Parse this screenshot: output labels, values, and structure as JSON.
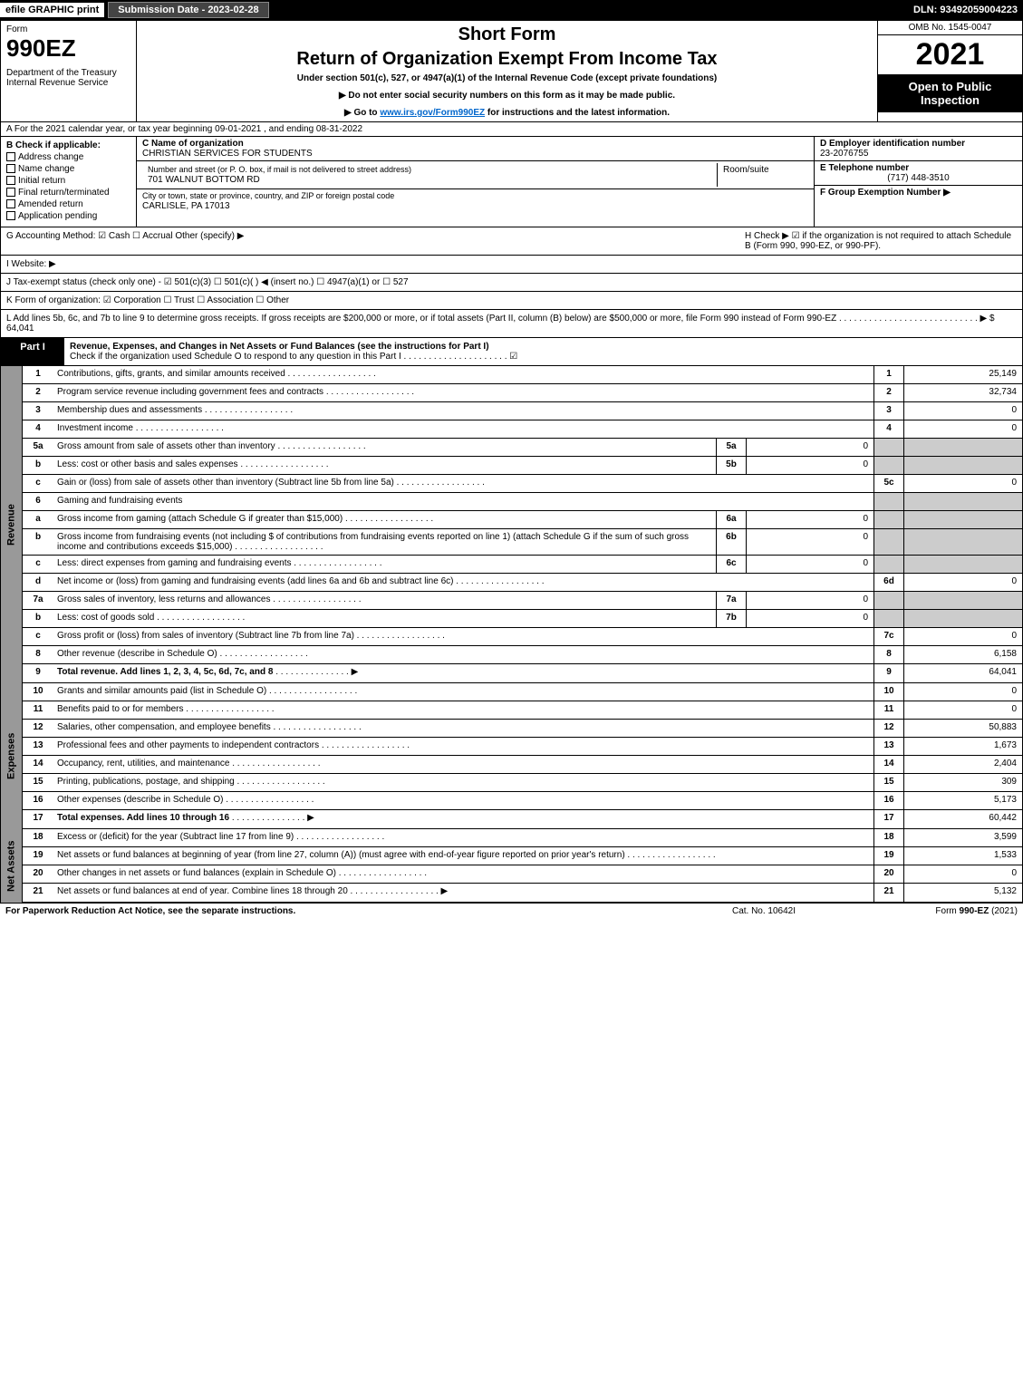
{
  "topbar": {
    "efile": "efile GRAPHIC print",
    "subdate": "Submission Date - 2023-02-28",
    "dln": "DLN: 93492059004223"
  },
  "header": {
    "form": "Form",
    "formnum": "990EZ",
    "dept": "Department of the Treasury",
    "irs": "Internal Revenue Service",
    "sf": "Short Form",
    "title": "Return of Organization Exempt From Income Tax",
    "sub": "Under section 501(c), 527, or 4947(a)(1) of the Internal Revenue Code (except private foundations)",
    "note1": "▶ Do not enter social security numbers on this form as it may be made public.",
    "note2_pre": "▶ Go to ",
    "note2_link": "www.irs.gov/Form990EZ",
    "note2_post": " for instructions and the latest information.",
    "omb": "OMB No. 1545-0047",
    "year": "2021",
    "open": "Open to Public Inspection"
  },
  "rowA": "A  For the 2021 calendar year, or tax year beginning 09-01-2021 , and ending 08-31-2022",
  "colB": {
    "title": "B  Check if applicable:",
    "opts": [
      "Address change",
      "Name change",
      "Initial return",
      "Final return/terminated",
      "Amended return",
      "Application pending"
    ]
  },
  "colC": {
    "name_lbl": "C Name of organization",
    "name": "CHRISTIAN SERVICES FOR STUDENTS",
    "street_lbl": "Number and street (or P. O. box, if mail is not delivered to street address)",
    "room_lbl": "Room/suite",
    "street": "701 WALNUT BOTTOM RD",
    "city_lbl": "City or town, state or province, country, and ZIP or foreign postal code",
    "city": "CARLISLE, PA  17013"
  },
  "colD": {
    "ein_lbl": "D Employer identification number",
    "ein": "23-2076755",
    "phone_lbl": "E Telephone number",
    "phone": "(717) 448-3510",
    "group_lbl": "F Group Exemption Number   ▶"
  },
  "rowG": {
    "g": "G Accounting Method:   ☑ Cash   ☐ Accrual   Other (specify) ▶",
    "h": "H  Check ▶  ☑  if the organization is not required to attach Schedule B (Form 990, 990-EZ, or 990-PF)."
  },
  "rowI": "I Website: ▶",
  "rowJ": "J Tax-exempt status (check only one) - ☑ 501(c)(3)  ☐ 501(c)(  ) ◀ (insert no.)  ☐ 4947(a)(1) or  ☐ 527",
  "rowK": "K Form of organization:  ☑ Corporation   ☐ Trust   ☐ Association   ☐ Other",
  "rowL": "L Add lines 5b, 6c, and 7b to line 9 to determine gross receipts. If gross receipts are $200,000 or more, or if total assets (Part II, column (B) below) are $500,000 or more, file Form 990 instead of Form 990-EZ  . . . . . . . . . . . . . . . . . . . . . . . . . . . .  ▶ $ 64,041",
  "part1": {
    "tag": "Part I",
    "title": "Revenue, Expenses, and Changes in Net Assets or Fund Balances (see the instructions for Part I)",
    "sub": "Check if the organization used Schedule O to respond to any question in this Part I . . . . . . . . . . . . . . . . . . . . .  ☑"
  },
  "sections": [
    {
      "label": "Revenue",
      "rows": [
        {
          "n": "1",
          "d": "Contributions, gifts, grants, and similar amounts received",
          "rn": "1",
          "rv": "25,149"
        },
        {
          "n": "2",
          "d": "Program service revenue including government fees and contracts",
          "rn": "2",
          "rv": "32,734"
        },
        {
          "n": "3",
          "d": "Membership dues and assessments",
          "rn": "3",
          "rv": "0"
        },
        {
          "n": "4",
          "d": "Investment income",
          "rn": "4",
          "rv": "0"
        },
        {
          "n": "5a",
          "d": "Gross amount from sale of assets other than inventory",
          "sn": "5a",
          "sv": "0",
          "grey": true
        },
        {
          "n": "b",
          "d": "Less: cost or other basis and sales expenses",
          "sn": "5b",
          "sv": "0",
          "grey": true
        },
        {
          "n": "c",
          "d": "Gain or (loss) from sale of assets other than inventory (Subtract line 5b from line 5a)",
          "rn": "5c",
          "rv": "0"
        },
        {
          "n": "6",
          "d": "Gaming and fundraising events",
          "grey": true,
          "noval": true
        },
        {
          "n": "a",
          "d": "Gross income from gaming (attach Schedule G if greater than $15,000)",
          "sn": "6a",
          "sv": "0",
          "grey": true
        },
        {
          "n": "b",
          "d": "Gross income from fundraising events (not including $                      of contributions from fundraising events reported on line 1) (attach Schedule G if the sum of such gross income and contributions exceeds $15,000)",
          "sn": "6b",
          "sv": "0",
          "grey": true
        },
        {
          "n": "c",
          "d": "Less: direct expenses from gaming and fundraising events",
          "sn": "6c",
          "sv": "0",
          "grey": true
        },
        {
          "n": "d",
          "d": "Net income or (loss) from gaming and fundraising events (add lines 6a and 6b and subtract line 6c)",
          "rn": "6d",
          "rv": "0"
        },
        {
          "n": "7a",
          "d": "Gross sales of inventory, less returns and allowances",
          "sn": "7a",
          "sv": "0",
          "grey": true
        },
        {
          "n": "b",
          "d": "Less: cost of goods sold",
          "sn": "7b",
          "sv": "0",
          "grey": true
        },
        {
          "n": "c",
          "d": "Gross profit or (loss) from sales of inventory (Subtract line 7b from line 7a)",
          "rn": "7c",
          "rv": "0"
        },
        {
          "n": "8",
          "d": "Other revenue (describe in Schedule O)",
          "rn": "8",
          "rv": "6,158"
        },
        {
          "n": "9",
          "d": "Total revenue. Add lines 1, 2, 3, 4, 5c, 6d, 7c, and 8",
          "rn": "9",
          "rv": "64,041",
          "bold": true,
          "arrow": true
        }
      ]
    },
    {
      "label": "Expenses",
      "rows": [
        {
          "n": "10",
          "d": "Grants and similar amounts paid (list in Schedule O)",
          "rn": "10",
          "rv": "0"
        },
        {
          "n": "11",
          "d": "Benefits paid to or for members",
          "rn": "11",
          "rv": "0"
        },
        {
          "n": "12",
          "d": "Salaries, other compensation, and employee benefits",
          "rn": "12",
          "rv": "50,883"
        },
        {
          "n": "13",
          "d": "Professional fees and other payments to independent contractors",
          "rn": "13",
          "rv": "1,673"
        },
        {
          "n": "14",
          "d": "Occupancy, rent, utilities, and maintenance",
          "rn": "14",
          "rv": "2,404"
        },
        {
          "n": "15",
          "d": "Printing, publications, postage, and shipping",
          "rn": "15",
          "rv": "309"
        },
        {
          "n": "16",
          "d": "Other expenses (describe in Schedule O)",
          "rn": "16",
          "rv": "5,173"
        },
        {
          "n": "17",
          "d": "Total expenses. Add lines 10 through 16",
          "rn": "17",
          "rv": "60,442",
          "bold": true,
          "arrow": true
        }
      ]
    },
    {
      "label": "Net Assets",
      "rows": [
        {
          "n": "18",
          "d": "Excess or (deficit) for the year (Subtract line 17 from line 9)",
          "rn": "18",
          "rv": "3,599"
        },
        {
          "n": "19",
          "d": "Net assets or fund balances at beginning of year (from line 27, column (A)) (must agree with end-of-year figure reported on prior year's return)",
          "rn": "19",
          "rv": "1,533"
        },
        {
          "n": "20",
          "d": "Other changes in net assets or fund balances (explain in Schedule O)",
          "rn": "20",
          "rv": "0"
        },
        {
          "n": "21",
          "d": "Net assets or fund balances at end of year. Combine lines 18 through 20",
          "rn": "21",
          "rv": "5,132",
          "arrow": true
        }
      ]
    }
  ],
  "footer": {
    "f1": "For Paperwork Reduction Act Notice, see the separate instructions.",
    "f2": "Cat. No. 10642I",
    "f3": "Form 990-EZ (2021)"
  }
}
